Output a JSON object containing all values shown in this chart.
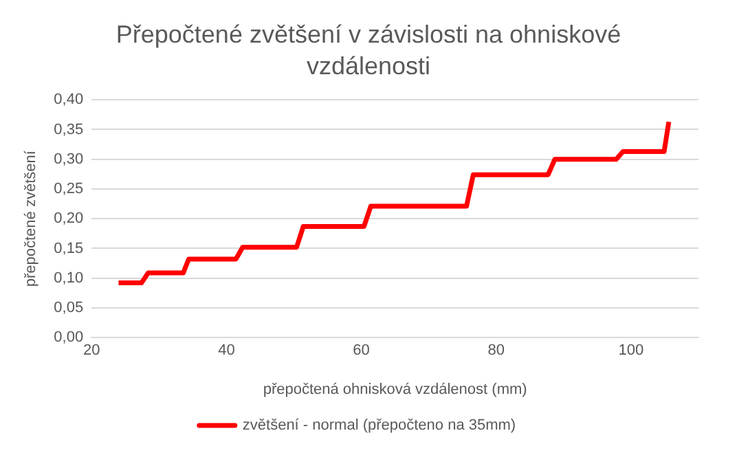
{
  "chart_data": {
    "type": "line",
    "title": "Přepočtené zvětšení v závislosti na ohniskové vzdálenosti",
    "xlabel": "přepočtená ohnisková vzdálenost (mm)",
    "ylabel": "přepočtené zvětšení",
    "x": [
      24,
      27.4,
      28.4,
      33.6,
      34.4,
      41.4,
      42.4,
      50.4,
      51.4,
      60.4,
      61.4,
      75.6,
      76.6,
      87.7,
      88.7,
      97.8,
      98.8,
      104.9,
      105.6
    ],
    "series": [
      {
        "name": "zvětšení - normal (přepočteno na 35mm)",
        "color": "#ff0000",
        "values": [
          0.092,
          0.092,
          0.109,
          0.109,
          0.132,
          0.132,
          0.152,
          0.152,
          0.187,
          0.187,
          0.221,
          0.221,
          0.274,
          0.274,
          0.3,
          0.3,
          0.313,
          0.313,
          0.363
        ]
      }
    ],
    "xlim": [
      20,
      110
    ],
    "xticks": [
      20,
      40,
      60,
      80,
      100
    ],
    "ylim": [
      0,
      0.4
    ],
    "yticks": [
      {
        "value": 0,
        "label": "0,00"
      },
      {
        "value": 0.05,
        "label": "0,05"
      },
      {
        "value": 0.1,
        "label": "0,10"
      },
      {
        "value": 0.15,
        "label": "0,15"
      },
      {
        "value": 0.2,
        "label": "0,20"
      },
      {
        "value": 0.25,
        "label": "0,25"
      },
      {
        "value": 0.3,
        "label": "0,30"
      },
      {
        "value": 0.35,
        "label": "0,35"
      },
      {
        "value": 0.4,
        "label": "0,40"
      }
    ],
    "grid": "y",
    "legend": "bottom",
    "marker": "none",
    "line_style": "solid"
  }
}
